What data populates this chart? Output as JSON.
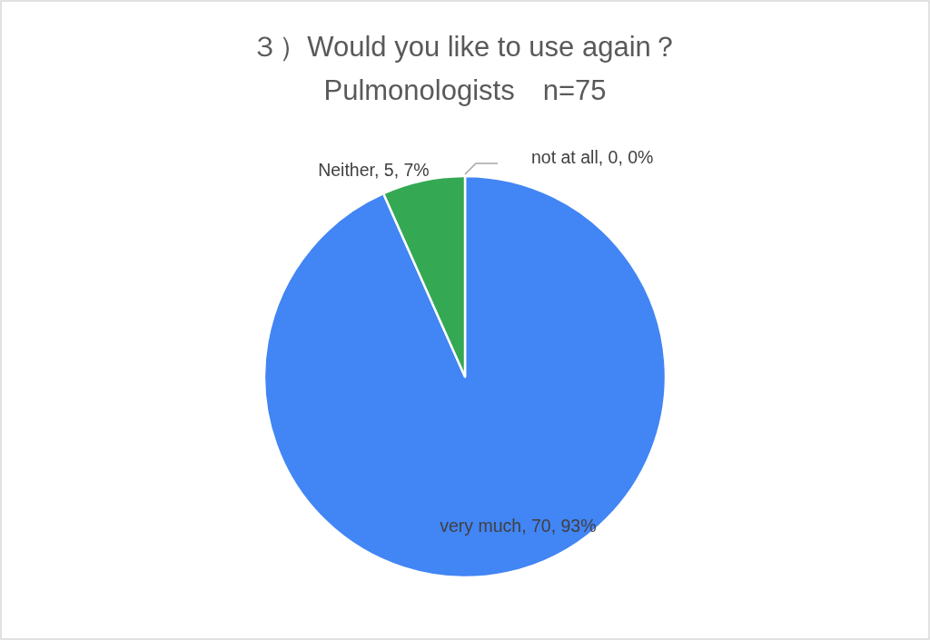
{
  "chart_data": {
    "type": "pie",
    "title": "３）Would you like to use again？",
    "subtitle": "Pulmonologists　n=75",
    "categories": [
      "very much",
      "Neither",
      "not at all"
    ],
    "values": [
      70,
      5,
      0
    ],
    "colors": [
      "#4285f4",
      "#34a853",
      "#ea4335"
    ],
    "value_labels": [
      "70, 93%",
      "5, 7%",
      "0, 0%"
    ]
  }
}
